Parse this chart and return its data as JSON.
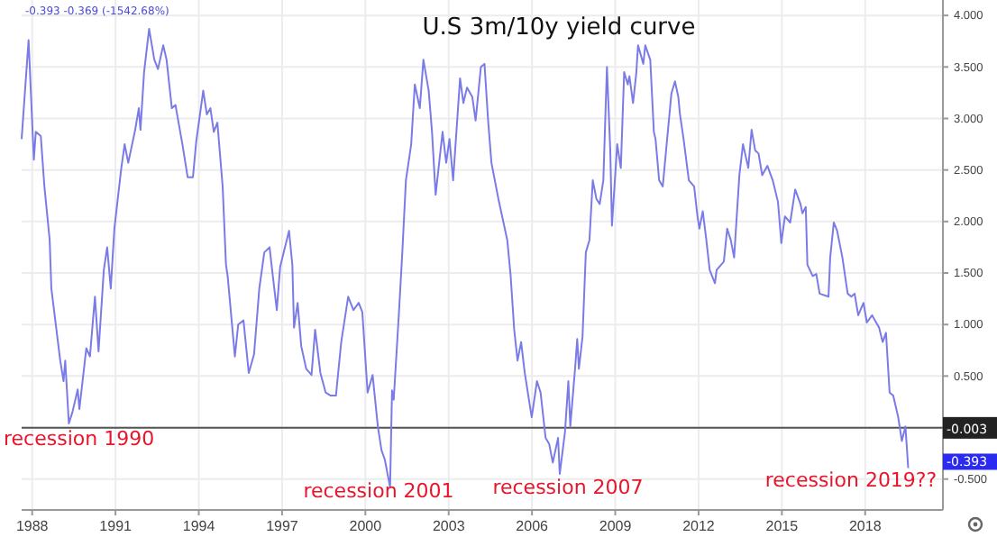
{
  "chart_data": {
    "type": "line",
    "title": "U.S 3m/10y yield curve",
    "x": [
      1987.62,
      1987.87,
      1988.06,
      1988.13,
      1988.31,
      1988.44,
      1988.63,
      1988.69,
      1989.01,
      1989.13,
      1989.19,
      1989.32,
      1989.45,
      1989.64,
      1989.7,
      1989.95,
      1990.08,
      1990.26,
      1990.39,
      1990.58,
      1990.7,
      1990.83,
      1990.96,
      1991.21,
      1991.33,
      1991.46,
      1991.71,
      1991.84,
      1991.9,
      1992.03,
      1992.21,
      1992.4,
      1992.53,
      1992.72,
      1992.84,
      1993.03,
      1993.16,
      1993.41,
      1993.6,
      1993.79,
      1993.91,
      1994.16,
      1994.29,
      1994.42,
      1994.54,
      1994.67,
      1994.86,
      1994.98,
      1995.04,
      1995.3,
      1995.42,
      1995.61,
      1995.8,
      1995.99,
      1996.18,
      1996.36,
      1996.55,
      1996.62,
      1996.81,
      1996.93,
      1997.25,
      1997.37,
      1997.43,
      1997.56,
      1997.69,
      1997.87,
      1998.06,
      1998.19,
      1998.38,
      1998.57,
      1998.75,
      1998.94,
      1999.13,
      1999.38,
      1999.57,
      1999.76,
      1999.89,
      2000.08,
      2000.26,
      2000.45,
      2000.58,
      2000.7,
      2000.89,
      2000.96,
      2001.02,
      2001.21,
      2001.33,
      2001.46,
      2001.65,
      2001.78,
      2001.96,
      2002.09,
      2002.28,
      2002.4,
      2002.53,
      2002.78,
      2002.91,
      2003.03,
      2003.16,
      2003.41,
      2003.53,
      2003.66,
      2003.85,
      2003.97,
      2004.16,
      2004.29,
      2004.42,
      2004.54,
      2004.79,
      2005.11,
      2005.23,
      2005.36,
      2005.48,
      2005.61,
      2005.74,
      2005.99,
      2006.18,
      2006.31,
      2006.49,
      2006.62,
      2006.75,
      2006.94,
      2007.0,
      2007.19,
      2007.31,
      2007.38,
      2007.56,
      2007.63,
      2007.69,
      2007.82,
      2007.94,
      2008.07,
      2008.19,
      2008.32,
      2008.44,
      2008.57,
      2008.7,
      2008.82,
      2008.88,
      2009.07,
      2009.2,
      2009.32,
      2009.45,
      2009.51,
      2009.64,
      2009.76,
      2009.82,
      2010.01,
      2010.08,
      2010.26,
      2010.39,
      2010.45,
      2010.58,
      2010.71,
      2010.83,
      2011.02,
      2011.15,
      2011.27,
      2011.33,
      2011.46,
      2011.65,
      2011.84,
      2011.96,
      2012.03,
      2012.15,
      2012.28,
      2012.4,
      2012.59,
      2012.65,
      2012.91,
      2013.03,
      2013.16,
      2013.28,
      2013.47,
      2013.6,
      2013.79,
      2013.91,
      2014.04,
      2014.16,
      2014.29,
      2014.48,
      2014.67,
      2014.86,
      2014.98,
      2015.11,
      2015.3,
      2015.48,
      2015.67,
      2015.74,
      2015.86,
      2015.92,
      2016.11,
      2016.24,
      2016.36,
      2016.68,
      2016.74,
      2016.87,
      2016.99,
      2017.18,
      2017.37,
      2017.5,
      2017.62,
      2017.75,
      2017.94,
      2018.06,
      2018.25,
      2018.5,
      2018.63,
      2018.75,
      2018.88,
      2019.01,
      2019.19,
      2019.32,
      2019.45,
      2019.55
    ],
    "series": [
      {
        "color": "#7b7be8",
        "values": [
          2.8,
          3.76,
          2.6,
          2.87,
          2.83,
          2.34,
          1.82,
          1.35,
          0.65,
          0.45,
          0.65,
          0.04,
          0.15,
          0.37,
          0.18,
          0.77,
          0.69,
          1.27,
          0.74,
          1.53,
          1.75,
          1.35,
          1.93,
          2.52,
          2.75,
          2.57,
          2.89,
          3.1,
          2.89,
          3.45,
          3.87,
          3.57,
          3.48,
          3.71,
          3.57,
          3.1,
          3.13,
          2.75,
          2.43,
          2.43,
          2.78,
          3.27,
          3.04,
          3.1,
          2.87,
          2.96,
          2.34,
          1.58,
          1.47,
          0.69,
          1.0,
          1.04,
          0.53,
          0.71,
          1.35,
          1.7,
          1.75,
          1.58,
          1.14,
          1.56,
          1.91,
          1.58,
          0.97,
          1.21,
          0.79,
          0.57,
          0.51,
          0.95,
          0.53,
          0.34,
          0.31,
          0.31,
          0.83,
          1.27,
          1.14,
          1.21,
          1.12,
          0.34,
          0.51,
          0.01,
          -0.22,
          -0.31,
          -0.58,
          0.36,
          0.27,
          1.12,
          1.7,
          2.4,
          2.75,
          3.33,
          3.1,
          3.57,
          3.27,
          2.87,
          2.26,
          2.87,
          2.57,
          2.8,
          2.4,
          3.39,
          3.15,
          3.3,
          3.21,
          2.98,
          3.5,
          3.53,
          2.98,
          2.57,
          2.22,
          1.82,
          1.48,
          0.95,
          0.65,
          0.83,
          0.53,
          0.1,
          0.45,
          0.34,
          -0.1,
          -0.16,
          -0.34,
          -0.1,
          -0.45,
          -0.04,
          0.45,
          0.01,
          0.6,
          0.86,
          0.57,
          0.88,
          1.7,
          1.82,
          2.4,
          2.22,
          2.17,
          2.4,
          3.5,
          2.69,
          1.96,
          2.75,
          2.52,
          3.45,
          3.33,
          3.41,
          3.15,
          3.45,
          3.71,
          3.53,
          3.71,
          3.57,
          2.87,
          2.8,
          2.4,
          2.34,
          2.69,
          3.24,
          3.36,
          3.21,
          3.04,
          2.8,
          2.4,
          2.34,
          2.05,
          1.93,
          2.1,
          1.82,
          1.53,
          1.4,
          1.53,
          1.61,
          1.93,
          1.82,
          1.65,
          2.45,
          2.75,
          2.52,
          2.89,
          2.69,
          2.66,
          2.45,
          2.54,
          2.4,
          2.19,
          1.79,
          2.05,
          1.99,
          2.31,
          2.17,
          2.08,
          2.14,
          1.58,
          1.47,
          1.49,
          1.3,
          1.27,
          1.65,
          1.99,
          1.91,
          1.65,
          1.3,
          1.27,
          1.3,
          1.09,
          1.21,
          1.02,
          1.09,
          0.97,
          0.83,
          0.92,
          0.34,
          0.31,
          0.1,
          -0.13,
          0.01,
          -0.393
        ]
      }
    ],
    "xlim": [
      1987.62,
      2020.8
    ],
    "xticks": [
      1988,
      1991,
      1994,
      1997,
      2000,
      2003,
      2006,
      2009,
      2012,
      2015,
      2018
    ],
    "ylim": [
      -0.8,
      4.15
    ],
    "yticks": [
      {
        "value": -0.5,
        "label": "-0.500"
      },
      {
        "value": 0,
        "label": null
      },
      {
        "value": 0.5,
        "label": "0.500"
      },
      {
        "value": 1,
        "label": "1.000"
      },
      {
        "value": 1.5,
        "label": "1.500"
      },
      {
        "value": 2,
        "label": "2.000"
      },
      {
        "value": 2.5,
        "label": "2.500"
      },
      {
        "value": 3,
        "label": "3.000"
      },
      {
        "value": 3.5,
        "label": "3.500"
      },
      {
        "value": 4,
        "label": "4.000"
      }
    ],
    "grid": true,
    "ref_lines": [
      {
        "axis": "y",
        "value": -0.003,
        "label": "-0.003",
        "color": "#555555"
      }
    ],
    "annotations": [
      "-0.393  -0.369 (-1542.68%)",
      "-0.393",
      "recession 1990",
      "recession 2001",
      "recession 2007",
      "recession 2019??"
    ]
  }
}
